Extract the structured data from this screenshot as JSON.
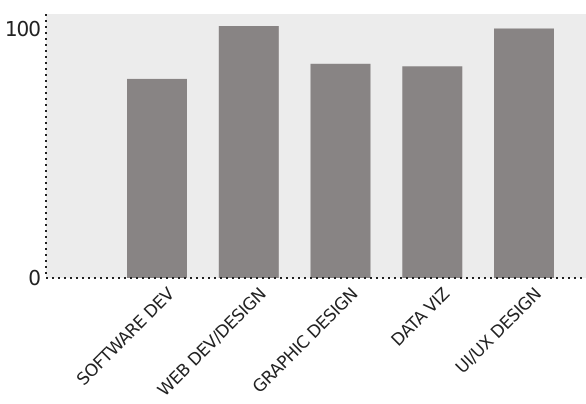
{
  "chart_data": {
    "type": "bar",
    "categories": [
      "SOFTWARE DEV",
      "WEB DEV/DESIGN",
      "GRAPHIC DESIGN",
      "DATA VIZ",
      "UI/UX DESIGN"
    ],
    "values": [
      79,
      100,
      85,
      84,
      99
    ],
    "ylim": [
      0,
      100
    ],
    "yticks": [
      "0",
      "100"
    ],
    "title": "",
    "xlabel": "",
    "ylabel": "",
    "grid": false,
    "colors": {
      "plot_background": "#ececec",
      "bar": "#888484",
      "axis": "#222222"
    }
  }
}
